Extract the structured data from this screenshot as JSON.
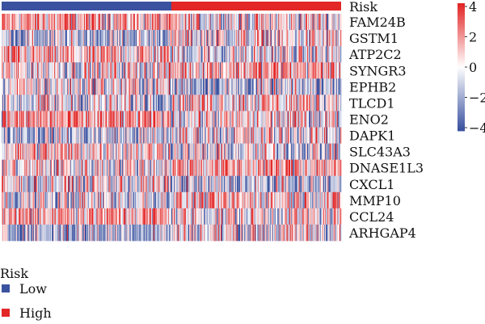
{
  "chart_data": {
    "type": "heatmap",
    "title": "",
    "xlabel": "",
    "ylabel": "",
    "annotation": {
      "label": "Risk",
      "groups": [
        {
          "name": "Low",
          "color": "#3a52a0",
          "fraction": 0.5
        },
        {
          "name": "High",
          "color": "#e32626",
          "fraction": 0.5
        }
      ]
    },
    "rows": [
      "FAM24B",
      "GSTM1",
      "ATP2C2",
      "SYNGR3",
      "EPHB2",
      "TLCD1",
      "ENO2",
      "DAPK1",
      "SLC43A3",
      "DNASE1L3",
      "CXCL1",
      "MMP10",
      "CCL24",
      "ARHGAP4"
    ],
    "n_columns": 400,
    "color_scale": {
      "min": -4,
      "max": 4,
      "low_color": "#3a52a0",
      "mid_color": "#ffffff",
      "high_color": "#e32626",
      "ticks": [
        "4",
        "2",
        "0",
        "−2",
        "−4"
      ]
    },
    "legend": {
      "title": "Risk",
      "items": [
        {
          "label": "Low",
          "color": "#3a52a0"
        },
        {
          "label": "High",
          "color": "#e32626"
        }
      ],
      "position": "bottom-left"
    }
  }
}
